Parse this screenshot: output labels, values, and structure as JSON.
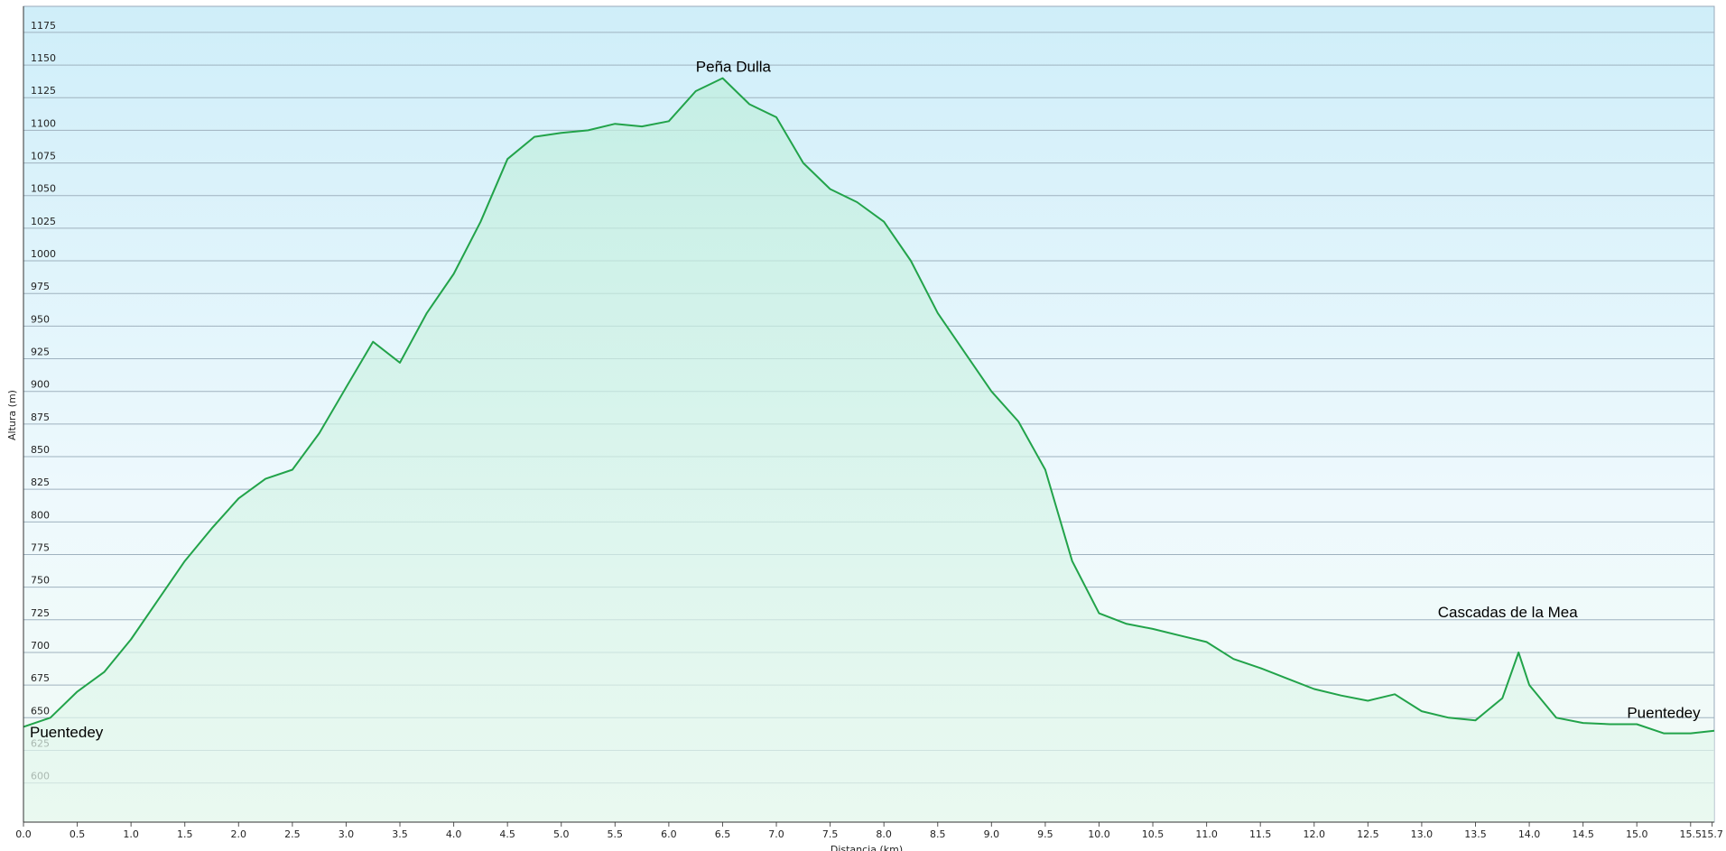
{
  "chart_data": {
    "type": "area",
    "x_label": "Distancia (km)",
    "y_label": "Altura (m)",
    "x": [
      0,
      0.25,
      0.5,
      0.75,
      1.0,
      1.25,
      1.5,
      1.75,
      2.0,
      2.25,
      2.5,
      2.75,
      3.0,
      3.25,
      3.5,
      3.75,
      4.0,
      4.25,
      4.5,
      4.75,
      5.0,
      5.25,
      5.5,
      5.75,
      6.0,
      6.25,
      6.5,
      6.75,
      7.0,
      7.25,
      7.5,
      7.75,
      8.0,
      8.25,
      8.5,
      8.75,
      9.0,
      9.25,
      9.5,
      9.75,
      10.0,
      10.25,
      10.5,
      10.75,
      11.0,
      11.25,
      11.5,
      11.75,
      12.0,
      12.25,
      12.5,
      12.75,
      13.0,
      13.25,
      13.5,
      13.75,
      13.9,
      14.0,
      14.25,
      14.5,
      14.75,
      15.0,
      15.25,
      15.5,
      15.72
    ],
    "values": [
      643,
      650,
      670,
      685,
      710,
      740,
      770,
      795,
      818,
      833,
      840,
      868,
      903,
      938,
      922,
      960,
      990,
      1030,
      1078,
      1095,
      1098,
      1100,
      1105,
      1103,
      1107,
      1130,
      1140,
      1120,
      1110,
      1075,
      1055,
      1045,
      1030,
      1000,
      960,
      930,
      900,
      877,
      840,
      770,
      730,
      722,
      718,
      713,
      708,
      695,
      688,
      680,
      672,
      667,
      663,
      668,
      655,
      650,
      648,
      665,
      700,
      675,
      650,
      646,
      645,
      645,
      638,
      638,
      640
    ],
    "color": "#22a34a",
    "xlim": [
      0,
      15.72
    ],
    "ylim": [
      570,
      1195
    ],
    "xticks": [
      {
        "value": 0,
        "label": "0.0"
      },
      0.5,
      {
        "value": 1,
        "label": "1.0"
      },
      1.5,
      {
        "value": 2,
        "label": "2.0"
      },
      2.5,
      {
        "value": 3,
        "label": "3.0"
      },
      3.5,
      {
        "value": 4,
        "label": "4.0"
      },
      4.5,
      {
        "value": 5,
        "label": "5.0"
      },
      5.5,
      {
        "value": 6,
        "label": "6.0"
      },
      6.5,
      {
        "value": 7,
        "label": "7.0"
      },
      7.5,
      {
        "value": 8,
        "label": "8.0"
      },
      8.5,
      {
        "value": 9,
        "label": "9.0"
      },
      9.5,
      {
        "value": 10,
        "label": "10.0"
      },
      10.5,
      {
        "value": 11,
        "label": "11.0"
      },
      11.5,
      {
        "value": 12,
        "label": "12.0"
      },
      12.5,
      {
        "value": 13,
        "label": "13.0"
      },
      13.5,
      {
        "value": 14,
        "label": "14.0"
      },
      14.5,
      {
        "value": 15,
        "label": "15.0"
      },
      15.5,
      15.7
    ],
    "yticks": [
      600,
      625,
      650,
      675,
      700,
      725,
      750,
      775,
      800,
      825,
      850,
      875,
      900,
      925,
      950,
      975,
      1000,
      1025,
      1050,
      1075,
      1100,
      1125,
      1150,
      1175
    ],
    "grid": true,
    "annotations": [
      {
        "text": "Puentedey",
        "x": 0.4,
        "y": 638
      },
      {
        "text": "Peña Dulla",
        "x": 6.6,
        "y": 1148
      },
      {
        "text": "Cascadas de la Mea",
        "x": 13.8,
        "y": 730
      },
      {
        "text": "Puentedey",
        "x": 15.25,
        "y": 653
      }
    ]
  }
}
